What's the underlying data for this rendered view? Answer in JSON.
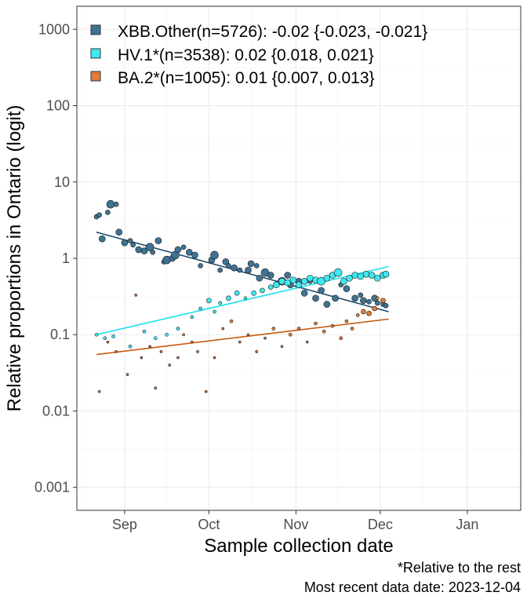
{
  "chart_data": {
    "type": "scatter",
    "title": "",
    "xlabel": "Sample collection date",
    "ylabel": "Relative proportions in Ontario (logit)",
    "y_scale": "log",
    "ylim": [
      0.0005,
      2000
    ],
    "xlim": [
      "2023-08-15",
      "2024-01-20"
    ],
    "y_ticks": [
      {
        "value": 0.001,
        "label": "0.001"
      },
      {
        "value": 0.01,
        "label": "0.01"
      },
      {
        "value": 0.1,
        "label": "0.1"
      },
      {
        "value": 1,
        "label": "1"
      },
      {
        "value": 10,
        "label": "10"
      },
      {
        "value": 100,
        "label": "100"
      },
      {
        "value": 1000,
        "label": "1000"
      }
    ],
    "x_ticks": [
      {
        "date": "2023-09-01",
        "label": "Sep"
      },
      {
        "date": "2023-10-01",
        "label": "Oct"
      },
      {
        "date": "2023-11-01",
        "label": "Nov"
      },
      {
        "date": "2023-12-01",
        "label": "Dec"
      },
      {
        "date": "2024-01-01",
        "label": "Jan"
      }
    ],
    "grid": true,
    "legend_position": "top-left",
    "series": [
      {
        "name": "XBB.Other(n=5726): -0.02 {-0.023, -0.021}",
        "color": "#3f7394",
        "fit_color": "#1b4b6b",
        "fit": [
          {
            "date": "2023-08-22",
            "y": 2.2
          },
          {
            "date": "2023-12-04",
            "y": 0.2
          }
        ],
        "points": [
          {
            "date": "2023-08-22",
            "y": 3.5,
            "s": 3
          },
          {
            "date": "2023-08-23",
            "y": 3.7,
            "s": 3
          },
          {
            "date": "2023-08-24",
            "y": 1.8,
            "s": 4
          },
          {
            "date": "2023-08-26",
            "y": 4.0,
            "s": 3
          },
          {
            "date": "2023-08-27",
            "y": 5.1,
            "s": 5
          },
          {
            "date": "2023-08-29",
            "y": 5.1,
            "s": 3
          },
          {
            "date": "2023-08-30",
            "y": 2.2,
            "s": 4
          },
          {
            "date": "2023-09-01",
            "y": 1.6,
            "s": 4
          },
          {
            "date": "2023-09-03",
            "y": 1.7,
            "s": 3
          },
          {
            "date": "2023-09-04",
            "y": 1.5,
            "s": 3
          },
          {
            "date": "2023-09-06",
            "y": 1.3,
            "s": 4
          },
          {
            "date": "2023-09-08",
            "y": 1.25,
            "s": 4
          },
          {
            "date": "2023-09-10",
            "y": 1.4,
            "s": 5
          },
          {
            "date": "2023-09-11",
            "y": 1.2,
            "s": 3
          },
          {
            "date": "2023-09-13",
            "y": 1.7,
            "s": 4
          },
          {
            "date": "2023-09-15",
            "y": 0.9,
            "s": 3
          },
          {
            "date": "2023-09-16",
            "y": 0.95,
            "s": 5
          },
          {
            "date": "2023-09-18",
            "y": 1.0,
            "s": 4
          },
          {
            "date": "2023-09-19",
            "y": 1.1,
            "s": 5
          },
          {
            "date": "2023-09-20",
            "y": 1.3,
            "s": 4
          },
          {
            "date": "2023-09-22",
            "y": 1.4,
            "s": 3
          },
          {
            "date": "2023-09-24",
            "y": 1.2,
            "s": 4
          },
          {
            "date": "2023-09-26",
            "y": 1.1,
            "s": 4
          },
          {
            "date": "2023-09-28",
            "y": 0.8,
            "s": 3
          },
          {
            "date": "2023-10-02",
            "y": 0.95,
            "s": 4
          },
          {
            "date": "2023-10-03",
            "y": 1.1,
            "s": 5
          },
          {
            "date": "2023-10-05",
            "y": 0.7,
            "s": 3
          },
          {
            "date": "2023-10-07",
            "y": 0.9,
            "s": 4
          },
          {
            "date": "2023-10-08",
            "y": 0.8,
            "s": 3
          },
          {
            "date": "2023-10-10",
            "y": 0.75,
            "s": 4
          },
          {
            "date": "2023-10-12",
            "y": 0.7,
            "s": 3
          },
          {
            "date": "2023-10-15",
            "y": 0.7,
            "s": 4
          },
          {
            "date": "2023-10-16",
            "y": 0.85,
            "s": 4
          },
          {
            "date": "2023-10-18",
            "y": 0.8,
            "s": 3
          },
          {
            "date": "2023-10-19",
            "y": 0.55,
            "s": 4
          },
          {
            "date": "2023-10-21",
            "y": 0.65,
            "s": 5
          },
          {
            "date": "2023-10-23",
            "y": 0.6,
            "s": 4
          },
          {
            "date": "2023-10-25",
            "y": 0.45,
            "s": 3
          },
          {
            "date": "2023-10-27",
            "y": 0.5,
            "s": 5
          },
          {
            "date": "2023-10-29",
            "y": 0.6,
            "s": 4
          },
          {
            "date": "2023-10-30",
            "y": 0.45,
            "s": 4
          },
          {
            "date": "2023-11-02",
            "y": 0.5,
            "s": 4
          },
          {
            "date": "2023-11-04",
            "y": 0.35,
            "s": 4
          },
          {
            "date": "2023-11-06",
            "y": 0.5,
            "s": 3
          },
          {
            "date": "2023-11-08",
            "y": 0.3,
            "s": 4
          },
          {
            "date": "2023-11-10",
            "y": 0.38,
            "s": 4
          },
          {
            "date": "2023-11-12",
            "y": 0.25,
            "s": 4
          },
          {
            "date": "2023-11-15",
            "y": 0.3,
            "s": 4
          },
          {
            "date": "2023-11-17",
            "y": 0.45,
            "s": 3
          },
          {
            "date": "2023-11-19",
            "y": 0.4,
            "s": 4
          },
          {
            "date": "2023-11-22",
            "y": 0.3,
            "s": 4
          },
          {
            "date": "2023-11-24",
            "y": 0.33,
            "s": 3
          },
          {
            "date": "2023-11-25",
            "y": 0.28,
            "s": 4
          },
          {
            "date": "2023-11-27",
            "y": 0.27,
            "s": 3
          },
          {
            "date": "2023-11-29",
            "y": 0.3,
            "s": 4
          },
          {
            "date": "2023-11-30",
            "y": 0.26,
            "s": 3
          },
          {
            "date": "2023-12-02",
            "y": 0.25,
            "s": 3
          },
          {
            "date": "2023-12-03",
            "y": 0.24,
            "s": 3
          }
        ]
      },
      {
        "name": "HV.1*(n=3538): 0.02 {0.018, 0.021}",
        "color": "#3fe8f0",
        "fit_color": "#18e0ef",
        "fit": [
          {
            "date": "2023-08-22",
            "y": 0.1
          },
          {
            "date": "2023-12-04",
            "y": 0.78
          }
        ],
        "points": [
          {
            "date": "2023-08-22",
            "y": 0.1,
            "s": 2
          },
          {
            "date": "2023-08-25",
            "y": 0.09,
            "s": 2
          },
          {
            "date": "2023-08-28",
            "y": 0.095,
            "s": 2
          },
          {
            "date": "2023-09-03",
            "y": 0.07,
            "s": 2
          },
          {
            "date": "2023-09-08",
            "y": 0.11,
            "s": 2
          },
          {
            "date": "2023-09-12",
            "y": 0.09,
            "s": 2
          },
          {
            "date": "2023-09-16",
            "y": 0.1,
            "s": 2
          },
          {
            "date": "2023-09-20",
            "y": 0.12,
            "s": 2
          },
          {
            "date": "2023-09-25",
            "y": 0.17,
            "s": 2
          },
          {
            "date": "2023-09-28",
            "y": 0.22,
            "s": 2
          },
          {
            "date": "2023-10-01",
            "y": 0.28,
            "s": 3
          },
          {
            "date": "2023-10-03",
            "y": 0.2,
            "s": 2
          },
          {
            "date": "2023-10-05",
            "y": 0.26,
            "s": 2
          },
          {
            "date": "2023-10-08",
            "y": 0.3,
            "s": 3
          },
          {
            "date": "2023-10-11",
            "y": 0.35,
            "s": 3
          },
          {
            "date": "2023-10-14",
            "y": 0.3,
            "s": 2
          },
          {
            "date": "2023-10-17",
            "y": 0.35,
            "s": 3
          },
          {
            "date": "2023-10-20",
            "y": 0.38,
            "s": 3
          },
          {
            "date": "2023-10-23",
            "y": 0.42,
            "s": 3
          },
          {
            "date": "2023-10-25",
            "y": 0.45,
            "s": 4
          },
          {
            "date": "2023-10-27",
            "y": 0.5,
            "s": 4
          },
          {
            "date": "2023-10-29",
            "y": 0.48,
            "s": 4
          },
          {
            "date": "2023-10-31",
            "y": 0.52,
            "s": 4
          },
          {
            "date": "2023-11-02",
            "y": 0.45,
            "s": 4
          },
          {
            "date": "2023-11-04",
            "y": 0.5,
            "s": 4
          },
          {
            "date": "2023-11-06",
            "y": 0.55,
            "s": 4
          },
          {
            "date": "2023-11-08",
            "y": 0.52,
            "s": 4
          },
          {
            "date": "2023-11-10",
            "y": 0.5,
            "s": 5
          },
          {
            "date": "2023-11-12",
            "y": 0.55,
            "s": 4
          },
          {
            "date": "2023-11-14",
            "y": 0.6,
            "s": 4
          },
          {
            "date": "2023-11-16",
            "y": 0.65,
            "s": 5
          },
          {
            "date": "2023-11-18",
            "y": 0.5,
            "s": 4
          },
          {
            "date": "2023-11-20",
            "y": 0.55,
            "s": 4
          },
          {
            "date": "2023-11-22",
            "y": 0.6,
            "s": 4
          },
          {
            "date": "2023-11-24",
            "y": 0.58,
            "s": 4
          },
          {
            "date": "2023-11-26",
            "y": 0.62,
            "s": 4
          },
          {
            "date": "2023-11-28",
            "y": 0.6,
            "s": 4
          },
          {
            "date": "2023-11-30",
            "y": 0.55,
            "s": 4
          },
          {
            "date": "2023-12-02",
            "y": 0.6,
            "s": 4
          },
          {
            "date": "2023-12-03",
            "y": 0.62,
            "s": 4
          }
        ]
      },
      {
        "name": "BA.2*(n=1005): 0.01 {0.007, 0.013}",
        "color": "#e07b39",
        "fit_color": "#c85a10",
        "fit": [
          {
            "date": "2023-08-22",
            "y": 0.055
          },
          {
            "date": "2023-12-04",
            "y": 0.16
          }
        ],
        "points": [
          {
            "date": "2023-08-23",
            "y": 0.018,
            "s": 1.5
          },
          {
            "date": "2023-08-26",
            "y": 0.08,
            "s": 1.5
          },
          {
            "date": "2023-08-29",
            "y": 0.06,
            "s": 1.5
          },
          {
            "date": "2023-09-02",
            "y": 0.03,
            "s": 1.5
          },
          {
            "date": "2023-09-05",
            "y": 0.33,
            "s": 1.5
          },
          {
            "date": "2023-09-07",
            "y": 0.05,
            "s": 1.5
          },
          {
            "date": "2023-09-10",
            "y": 0.07,
            "s": 1.5
          },
          {
            "date": "2023-09-12",
            "y": 0.02,
            "s": 1.5
          },
          {
            "date": "2023-09-14",
            "y": 0.06,
            "s": 1.5
          },
          {
            "date": "2023-09-17",
            "y": 0.04,
            "s": 1.5
          },
          {
            "date": "2023-09-20",
            "y": 0.05,
            "s": 1.5
          },
          {
            "date": "2023-09-22",
            "y": 0.1,
            "s": 1.5
          },
          {
            "date": "2023-09-25",
            "y": 0.08,
            "s": 1.5
          },
          {
            "date": "2023-09-27",
            "y": 0.06,
            "s": 1.5
          },
          {
            "date": "2023-09-30",
            "y": 0.018,
            "s": 1.5
          },
          {
            "date": "2023-10-03",
            "y": 0.05,
            "s": 1.5
          },
          {
            "date": "2023-10-06",
            "y": 0.12,
            "s": 1.5
          },
          {
            "date": "2023-10-09",
            "y": 0.15,
            "s": 2
          },
          {
            "date": "2023-10-12",
            "y": 0.08,
            "s": 1.5
          },
          {
            "date": "2023-10-15",
            "y": 0.1,
            "s": 1.5
          },
          {
            "date": "2023-10-18",
            "y": 0.06,
            "s": 1.5
          },
          {
            "date": "2023-10-21",
            "y": 0.09,
            "s": 1.5
          },
          {
            "date": "2023-10-24",
            "y": 0.12,
            "s": 2
          },
          {
            "date": "2023-10-27",
            "y": 0.07,
            "s": 1.5
          },
          {
            "date": "2023-10-30",
            "y": 0.1,
            "s": 2
          },
          {
            "date": "2023-11-02",
            "y": 0.12,
            "s": 2
          },
          {
            "date": "2023-11-05",
            "y": 0.08,
            "s": 1.5
          },
          {
            "date": "2023-11-08",
            "y": 0.14,
            "s": 2
          },
          {
            "date": "2023-11-11",
            "y": 0.11,
            "s": 2
          },
          {
            "date": "2023-11-14",
            "y": 0.13,
            "s": 2
          },
          {
            "date": "2023-11-17",
            "y": 0.09,
            "s": 2
          },
          {
            "date": "2023-11-19",
            "y": 0.15,
            "s": 2
          },
          {
            "date": "2023-11-21",
            "y": 0.12,
            "s": 2
          },
          {
            "date": "2023-11-23",
            "y": 0.18,
            "s": 2
          },
          {
            "date": "2023-11-25",
            "y": 0.2,
            "s": 3
          },
          {
            "date": "2023-11-27",
            "y": 0.19,
            "s": 3
          },
          {
            "date": "2023-11-29",
            "y": 0.22,
            "s": 3
          },
          {
            "date": "2023-11-30",
            "y": 0.3,
            "s": 2
          },
          {
            "date": "2023-12-02",
            "y": 0.28,
            "s": 3
          }
        ]
      }
    ],
    "annotations": [
      "*Relative to the rest",
      "Most recent data date: 2023-12-04"
    ]
  }
}
